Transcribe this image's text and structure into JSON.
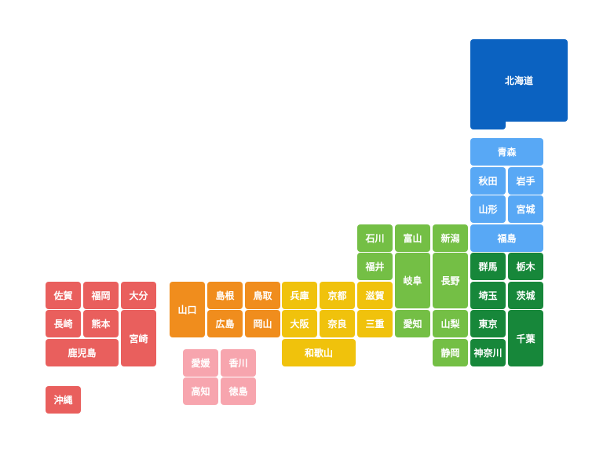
{
  "prefectures": [
    "北海道",
    "青森",
    "秋田",
    "岩手",
    "山形",
    "宮城",
    "石川",
    "富山",
    "新潟",
    "福島",
    "福井",
    "岐阜",
    "長野",
    "群馬",
    "栃木",
    "山口",
    "島根",
    "鳥取",
    "兵庫",
    "京都",
    "滋賀",
    "埼玉",
    "茨城",
    "広島",
    "岡山",
    "大阪",
    "奈良",
    "三重",
    "愛知",
    "山梨",
    "東京",
    "千葉",
    "和歌山",
    "静岡",
    "神奈川",
    "佐賀",
    "福岡",
    "大分",
    "長崎",
    "熊本",
    "宮崎",
    "鹿児島",
    "沖縄",
    "愛媛",
    "香川",
    "高知",
    "徳島"
  ]
}
